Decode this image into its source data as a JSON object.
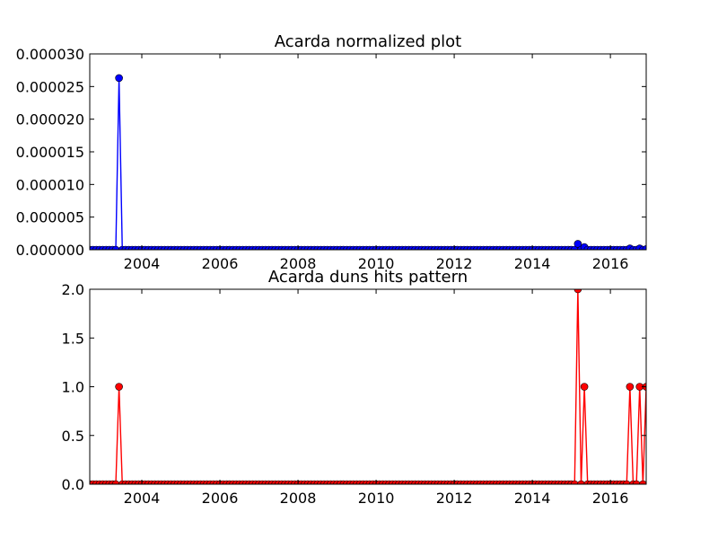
{
  "chart_data": [
    {
      "type": "line",
      "title": "Acarda normalized plot",
      "xlabel": "",
      "ylabel": "",
      "xlim": [
        "2002-09",
        "2016-12"
      ],
      "ylim": [
        0,
        3e-05
      ],
      "x_ticks": [
        "2004",
        "2006",
        "2008",
        "2010",
        "2012",
        "2014",
        "2016"
      ],
      "y_ticks": [
        "0.000000",
        "0.000005",
        "0.000010",
        "0.000015",
        "0.000020",
        "0.000025",
        "0.000030"
      ],
      "grid": false,
      "legend": "none",
      "color": "#0000ff",
      "marker": "circle",
      "spikes": [
        {
          "x": "2003-06",
          "y": 2.63e-05
        },
        {
          "x": "2015-03",
          "y": 9e-07
        },
        {
          "x": "2015-05",
          "y": 4e-07
        },
        {
          "x": "2016-07",
          "y": 2e-07
        },
        {
          "x": "2016-10",
          "y": 2e-07
        },
        {
          "x": "2016-12",
          "y": 1e-07
        }
      ],
      "baseline_value": 0,
      "sampling": "monthly"
    },
    {
      "type": "line",
      "title": "Acarda duns hits pattern",
      "xlabel": "",
      "ylabel": "",
      "xlim": [
        "2002-09",
        "2016-12"
      ],
      "ylim": [
        0,
        2.0
      ],
      "x_ticks": [
        "2004",
        "2006",
        "2008",
        "2010",
        "2012",
        "2014",
        "2016"
      ],
      "y_ticks": [
        "0.0",
        "0.5",
        "1.0",
        "1.5",
        "2.0"
      ],
      "grid": false,
      "legend": "none",
      "color": "#ff0000",
      "marker": "circle",
      "spikes": [
        {
          "x": "2003-06",
          "y": 1
        },
        {
          "x": "2015-03",
          "y": 2
        },
        {
          "x": "2015-05",
          "y": 1
        },
        {
          "x": "2016-07",
          "y": 1
        },
        {
          "x": "2016-10",
          "y": 1
        },
        {
          "x": "2016-12",
          "y": 1
        }
      ],
      "baseline_value": 0,
      "sampling": "monthly"
    }
  ]
}
